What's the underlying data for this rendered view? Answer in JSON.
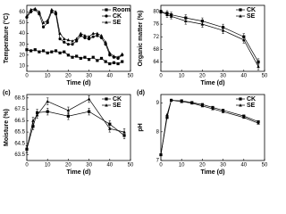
{
  "chart_data": [
    {
      "type": "line",
      "xlabel": "Time (d)",
      "ylabel": "Temperature (°C)",
      "x": [
        0,
        2,
        4,
        6,
        8,
        10,
        12,
        14,
        16,
        18,
        20,
        22,
        24,
        26,
        28,
        30,
        32,
        34,
        36,
        38,
        40,
        42,
        44,
        46
      ],
      "xlim": [
        0,
        50
      ],
      "xticks": [
        0,
        10,
        20,
        30,
        40,
        50
      ],
      "ylim": [
        5,
        66
      ],
      "yticks": [
        10,
        20,
        30,
        40,
        50,
        60
      ],
      "legend": "upper right",
      "series": [
        {
          "name": "Room",
          "color": "#000000",
          "marker": "square",
          "values": [
            25,
            24,
            25,
            23,
            24,
            22,
            23,
            24,
            22,
            23,
            20,
            18,
            19,
            17,
            18,
            16,
            18,
            15,
            17,
            14,
            12,
            13,
            12,
            14
          ]
        },
        {
          "name": "CK",
          "color": "#000000",
          "marker": "circle",
          "values": [
            55,
            60,
            62,
            58,
            46,
            50,
            60,
            58,
            35,
            32,
            30,
            30,
            33,
            38,
            36,
            35,
            37,
            38,
            36,
            30,
            20,
            18,
            17,
            20
          ]
        },
        {
          "name": "SE",
          "color": "#000000",
          "marker": "triangle",
          "values": [
            56,
            62,
            63,
            60,
            50,
            52,
            62,
            60,
            40,
            35,
            34,
            33,
            35,
            40,
            38,
            37,
            40,
            40,
            38,
            32,
            22,
            19,
            18,
            21
          ]
        }
      ]
    },
    {
      "type": "line",
      "xlabel": "Time (d)",
      "ylabel": "Organic matter (%)",
      "x": [
        0,
        3,
        5,
        12,
        20,
        30,
        40,
        47
      ],
      "xlim": [
        0,
        50
      ],
      "xticks": [
        0,
        10,
        20,
        30,
        40,
        50
      ],
      "ylim": [
        61,
        82
      ],
      "yticks": [
        64,
        68,
        72,
        76,
        80
      ],
      "legend": "upper right",
      "series": [
        {
          "name": "CK",
          "color": "#000000",
          "marker": "square",
          "values": [
            80,
            79.5,
            79,
            78,
            77,
            75,
            72,
            64
          ],
          "errors": [
            0.5,
            0.8,
            0.8,
            1,
            1,
            1,
            1,
            1
          ]
        },
        {
          "name": "SE",
          "color": "#000000",
          "marker": "triangle",
          "values": [
            80,
            79,
            78.5,
            77,
            76,
            74,
            71,
            62.5
          ],
          "errors": [
            0.5,
            0.8,
            0.8,
            1,
            1,
            1,
            1,
            1
          ]
        }
      ]
    },
    {
      "type": "line",
      "panel_label": "(c)",
      "xlabel": "Time (d)",
      "ylabel": "Moisture (%)",
      "x": [
        0,
        3,
        5,
        10,
        20,
        30,
        40,
        47
      ],
      "xlim": [
        0,
        50
      ],
      "xticks": [
        0,
        10,
        20,
        30,
        40,
        50
      ],
      "ylim": [
        63,
        68.8
      ],
      "yticks": [
        63.5,
        64.5,
        65.5,
        66.5,
        67.5,
        68.5
      ],
      "legend": "upper right",
      "series": [
        {
          "name": "CK",
          "color": "#000000",
          "marker": "square",
          "values": [
            64,
            66,
            67.2,
            67.3,
            66.9,
            67.3,
            66.2,
            65.2
          ],
          "errors": [
            0.3,
            0.3,
            0.3,
            0.3,
            0.3,
            0.3,
            0.3,
            0.3
          ]
        },
        {
          "name": "SE",
          "color": "#000000",
          "marker": "triangle",
          "values": [
            64,
            66.5,
            67,
            68.2,
            67.4,
            68.4,
            65.8,
            65.5
          ],
          "errors": [
            0.3,
            0.3,
            0.3,
            0.3,
            0.3,
            0.3,
            0.3,
            0.3
          ]
        }
      ]
    },
    {
      "type": "line",
      "panel_label": "(d)",
      "xlabel": "Time (d)",
      "ylabel": "pH",
      "x": [
        0,
        3,
        5,
        10,
        15,
        20,
        25,
        30,
        40,
        47
      ],
      "xlim": [
        0,
        50
      ],
      "xticks": [
        0,
        10,
        20,
        30,
        40,
        50
      ],
      "ylim": [
        7,
        9.3
      ],
      "yticks": [
        7,
        8,
        9
      ],
      "legend": "upper right",
      "series": [
        {
          "name": "CK",
          "color": "#000000",
          "marker": "square",
          "values": [
            7.2,
            8.5,
            9.1,
            9.08,
            9.02,
            8.95,
            8.85,
            8.75,
            8.55,
            8.35
          ]
        },
        {
          "name": "SE",
          "color": "#000000",
          "marker": "triangle",
          "values": [
            7.2,
            8.6,
            9.1,
            9.05,
            9,
            8.9,
            8.8,
            8.7,
            8.5,
            8.3
          ]
        }
      ]
    }
  ]
}
